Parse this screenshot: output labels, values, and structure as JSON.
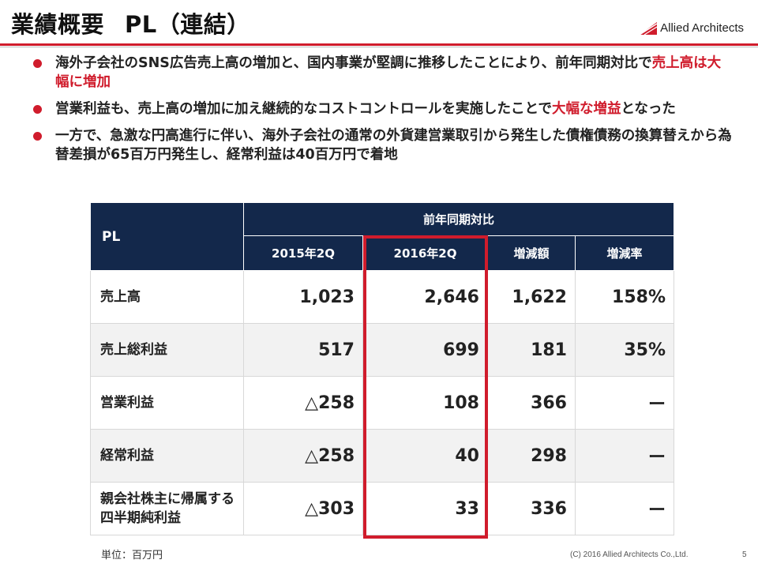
{
  "slide": {
    "title": "業績概要",
    "subtitle": "PL（連結）",
    "logo_text": "Allied Architects",
    "brand_color": "#d01c2c",
    "table_header_color": "#13284b"
  },
  "bullets": [
    {
      "text": "海外子会社のSNS広告売上高の増加と、国内事業が堅調に推移したことにより、前年同期対比で",
      "highlight": "売上高は大幅に増加",
      "tail": ""
    },
    {
      "text": "営業利益も、売上高の増加に加え継続的なコストコントロールを実施したことで",
      "highlight": "大幅な増益",
      "tail": "となった"
    },
    {
      "text": "一方で、急激な円高進行に伴い、海外子会社の通常の外貨建営業取引から発生した債権債務の換算替えから為替差損が65百万円発生し、経常利益は40百万円で着地",
      "highlight": "",
      "tail": ""
    }
  ],
  "table": {
    "corner": "PL",
    "group_header": "前年同期対比",
    "columns": [
      "2015年2Q",
      "2016年2Q",
      "増減額",
      "増減率"
    ],
    "rows": [
      {
        "label": "売上高",
        "values": [
          "1,023",
          "2,646",
          "1,622",
          "158%"
        ]
      },
      {
        "label": "売上総利益",
        "values": [
          "517",
          "699",
          "181",
          "35%"
        ]
      },
      {
        "label": "営業利益",
        "values": [
          "△258",
          "108",
          "366",
          "ー"
        ]
      },
      {
        "label": "経常利益",
        "values": [
          "△258",
          "40",
          "298",
          "ー"
        ]
      },
      {
        "label": "親会社株主に帰属する四半期純利益",
        "values": [
          "△303",
          "33",
          "336",
          "ー"
        ]
      }
    ]
  },
  "footer": {
    "unit": "単位：百万円",
    "copyright": "(C) 2016 Allied Architects Co.,Ltd.",
    "page": "5"
  }
}
